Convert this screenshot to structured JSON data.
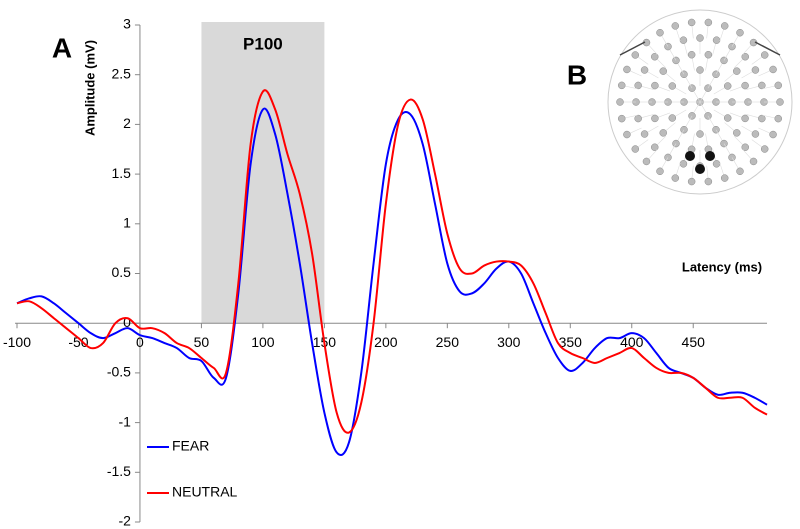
{
  "chart_data": {
    "type": "line",
    "annotations": [
      "A",
      "B"
    ],
    "ylabel": "Amplitude (mV)",
    "xlabel": "Latency (ms)",
    "highlight": {
      "label": "P100",
      "xrange": [
        50,
        150
      ],
      "color": "#d9d9d9"
    },
    "x": [
      -100,
      -90,
      -80,
      -70,
      -60,
      -50,
      -40,
      -30,
      -20,
      -10,
      0,
      10,
      20,
      30,
      40,
      50,
      60,
      70,
      80,
      90,
      100,
      110,
      120,
      130,
      140,
      150,
      160,
      170,
      180,
      190,
      200,
      210,
      220,
      230,
      240,
      250,
      260,
      270,
      280,
      290,
      300,
      310,
      320,
      330,
      340,
      350,
      360,
      370,
      380,
      390,
      400,
      410,
      420,
      430,
      440,
      450,
      460,
      470,
      480,
      490,
      500,
      510
    ],
    "series": [
      {
        "name": "FEAR",
        "color": "#0000ff",
        "values": [
          0.2,
          0.25,
          0.27,
          0.2,
          0.1,
          0.0,
          -0.1,
          -0.15,
          -0.1,
          -0.05,
          -0.12,
          -0.15,
          -0.2,
          -0.25,
          -0.35,
          -0.38,
          -0.55,
          -0.55,
          0.3,
          1.6,
          2.15,
          1.9,
          1.3,
          0.6,
          -0.2,
          -0.9,
          -1.3,
          -1.2,
          -0.5,
          0.6,
          1.6,
          2.05,
          2.1,
          1.8,
          1.2,
          0.6,
          0.32,
          0.3,
          0.4,
          0.55,
          0.62,
          0.5,
          0.2,
          -0.1,
          -0.35,
          -0.48,
          -0.4,
          -0.25,
          -0.15,
          -0.15,
          -0.1,
          -0.15,
          -0.3,
          -0.45,
          -0.5,
          -0.55,
          -0.65,
          -0.72,
          -0.7,
          -0.7,
          -0.75,
          -0.82
        ]
      },
      {
        "name": "NEUTRAL",
        "color": "#ff0000",
        "values": [
          0.2,
          0.22,
          0.15,
          0.05,
          -0.05,
          -0.15,
          -0.25,
          -0.2,
          0.0,
          0.05,
          -0.05,
          -0.05,
          -0.1,
          -0.2,
          -0.25,
          -0.35,
          -0.45,
          -0.5,
          0.4,
          1.8,
          2.33,
          2.15,
          1.7,
          1.3,
          0.7,
          -0.2,
          -0.9,
          -1.1,
          -0.8,
          0.0,
          1.2,
          2.0,
          2.25,
          2.05,
          1.5,
          0.9,
          0.55,
          0.5,
          0.58,
          0.62,
          0.62,
          0.58,
          0.4,
          0.1,
          -0.2,
          -0.3,
          -0.35,
          -0.4,
          -0.35,
          -0.3,
          -0.25,
          -0.35,
          -0.45,
          -0.5,
          -0.5,
          -0.55,
          -0.65,
          -0.75,
          -0.75,
          -0.75,
          -0.85,
          -0.92
        ]
      }
    ],
    "xlim": [
      -100,
      510
    ],
    "ylim": [
      -2,
      3
    ],
    "xticks": [
      -100,
      -50,
      0,
      50,
      100,
      150,
      200,
      250,
      300,
      350,
      400,
      450
    ],
    "yticks": [
      3,
      2.5,
      2,
      1.5,
      1,
      0.5,
      0,
      -0.5,
      -1,
      -1.5,
      -2
    ],
    "legend": "lower left"
  }
}
